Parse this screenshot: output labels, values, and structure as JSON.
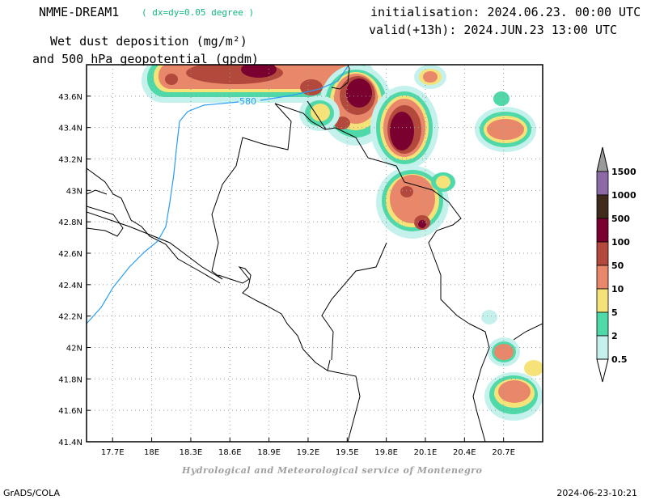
{
  "header": {
    "model": "NMME-DREAM1",
    "resolution": "( dx=dy=0.05 degree )",
    "initialisation": "initialisation: 2024.06.23. 00:00 UTC",
    "valid": "valid(+13h): 2024.JUN.23 13:00 UTC",
    "variable_line1": "Wet dust deposition (mg/m²)",
    "variable_line2": "and 500 hPa geopotential (gpdm)"
  },
  "map": {
    "lon_ticks": [
      "17.7E",
      "18E",
      "18.3E",
      "18.6E",
      "18.9E",
      "19.2E",
      "19.5E",
      "19.8E",
      "20.1E",
      "20.4E",
      "20.7E"
    ],
    "lat_ticks": [
      "43.6N",
      "43.4N",
      "43.2N",
      "43N",
      "42.8N",
      "42.6N",
      "42.4N",
      "42.2N",
      "42N",
      "41.8N",
      "41.6N",
      "41.4N"
    ],
    "lon_range": [
      17.5,
      21.0
    ],
    "lat_range": [
      41.4,
      43.8
    ],
    "contour_label": "580",
    "contour_color": "#2a9df4",
    "grid": true
  },
  "colorbar": {
    "levels": [
      "1500",
      "1000",
      "500",
      "100",
      "50",
      "10",
      "5",
      "2",
      "0.5"
    ],
    "colors": [
      "#8b6aa6",
      "#3f2a1c",
      "#7a0030",
      "#b3493c",
      "#e8876a",
      "#f5e37a",
      "#4fd8a8",
      "#c5f1ec"
    ],
    "top_arrow_color": "#9a9a9a"
  },
  "footer": {
    "credit": "Hydrological and Meteorological service of Montenegro",
    "software": "GrADS/COLA",
    "timestamp": "2024-06-23-10:21"
  }
}
